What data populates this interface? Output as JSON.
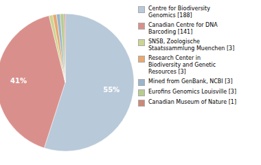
{
  "chart_data": {
    "type": "pie",
    "categories": [
      "Centre for Biodiversity\nGenomics [188]",
      "Canadian Centre for DNA\nBarcoding [141]",
      "SNSB, Zoologische\nStaatssammlung Muenchen [3]",
      "Research Center in\nBiodiversity and Genetic\nResources [3]",
      "Mined from GenBank, NCBI [3]",
      "Eurofins Genomics Louisville [3]",
      "Canadian Museum of Nature [1]"
    ],
    "values": [
      54.97,
      41.23,
      0.88,
      0.88,
      0.88,
      0.88,
      0.29
    ],
    "value_labels": [
      "55%",
      "41%",
      null,
      null,
      null,
      null,
      null
    ],
    "colors": [
      "#b8c9d9",
      "#d9908c",
      "#cdd490",
      "#e8a870",
      "#9ab5cc",
      "#b8cc90",
      "#cc8878"
    ],
    "data_labels": true,
    "legend": "right"
  }
}
